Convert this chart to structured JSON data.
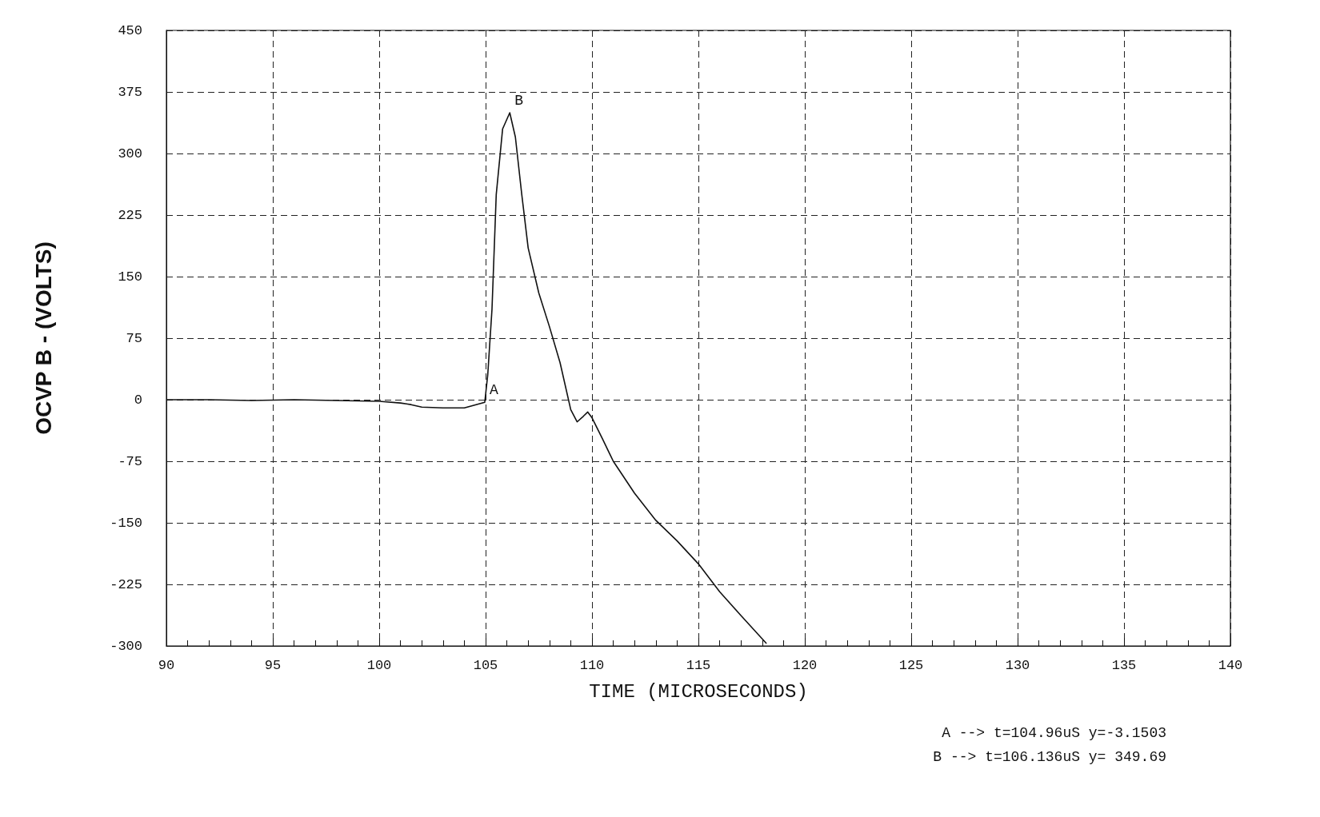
{
  "chart_data": {
    "type": "line",
    "xlabel": "TIME (MICROSECONDS)",
    "ylabel": "OCVP B - (VOLTS)",
    "xlim": [
      90,
      140
    ],
    "xticks": [
      90,
      95,
      100,
      105,
      110,
      115,
      120,
      125,
      130,
      135,
      140
    ],
    "ylim": [
      -300,
      450
    ],
    "yticks": [
      -300,
      -225,
      -150,
      -75,
      0,
      75,
      150,
      225,
      300,
      375,
      450
    ],
    "grid": true,
    "marker": "none",
    "line_style": "solid",
    "series": [
      {
        "color": "#111111",
        "x": [
          90,
          92,
          94,
          96,
          98,
          100,
          101,
          101.5,
          102,
          103,
          104,
          104.96,
          105.1,
          105.3,
          105.5,
          105.8,
          106.136,
          106.4,
          106.7,
          107,
          107.5,
          108,
          108.5,
          109,
          109.3,
          109.6,
          109.8,
          110,
          110.5,
          111,
          112,
          113,
          114,
          115,
          116,
          117,
          118.2
        ],
        "values": [
          0,
          0,
          -1,
          0,
          -1,
          -2,
          -4,
          -6,
          -9,
          -10,
          -10,
          -3.1503,
          30,
          110,
          250,
          330,
          349.69,
          320,
          250,
          185,
          130,
          89,
          45,
          -12,
          -27,
          -20,
          -15,
          -22,
          -48,
          -75,
          -114,
          -147,
          -172,
          -200,
          -234,
          -263,
          -297
        ]
      }
    ],
    "annotations": [
      {
        "text": "A",
        "x": 104.96,
        "y": -3.1503
      },
      {
        "text": "B",
        "x": 106.136,
        "y": 349.69
      },
      "A --> t=104.96uS y=-3.1503",
      "B --> t=106.136uS y= 349.69"
    ]
  }
}
